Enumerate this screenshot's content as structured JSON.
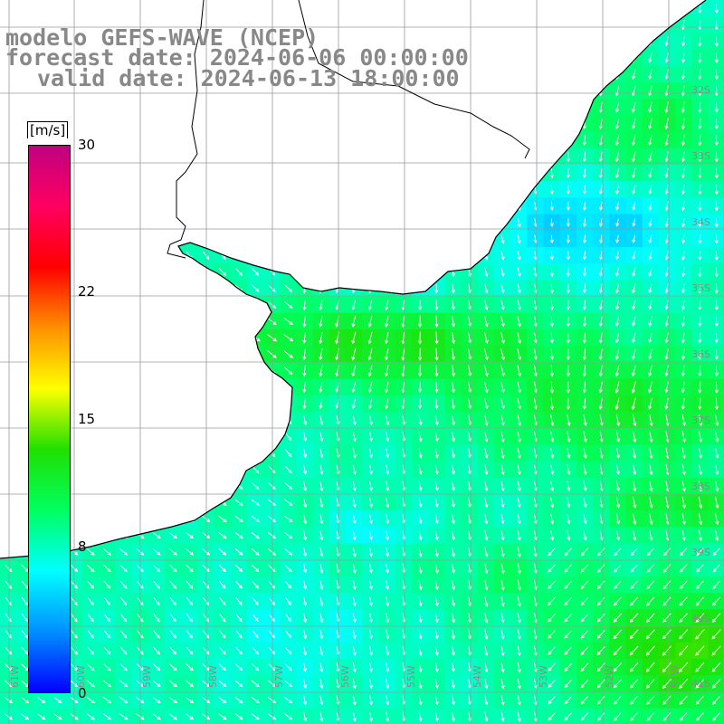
{
  "title": {
    "line1": "modelo GEFS-WAVE (NCEP)",
    "line2": "forecast date: 2024-06-06 00:00:00",
    "line3": "valid date: 2024-06-13 18:00:00"
  },
  "colorbar": {
    "unit": "[m/s]",
    "min": 0,
    "max": 30,
    "ticks": [
      "30",
      "22",
      "15",
      "8",
      "0"
    ],
    "tick_values": [
      30,
      22,
      15,
      8,
      0
    ],
    "stops": [
      "#0000ff",
      "#0090ff",
      "#00ffff",
      "#00ff60",
      "#20e000",
      "#ffff00",
      "#ff9000",
      "#ff0000",
      "#ff0060",
      "#c00080"
    ]
  },
  "lat_labels": [
    "32S",
    "33S",
    "34S",
    "35S",
    "36S",
    "37S",
    "38S",
    "39S",
    "40S",
    "41S"
  ],
  "lon_labels": [
    "61W",
    "60W",
    "59W",
    "58W",
    "57W",
    "56W",
    "55W",
    "54W",
    "53W",
    "52W",
    "51W"
  ],
  "chart_data": {
    "type": "heatmap",
    "variable": "wind speed",
    "unit": "m/s",
    "lat_range": [
      -41.3,
      -30.5
    ],
    "lon_range": [
      -61.7,
      -50.5
    ],
    "wind_field_regions": [
      {
        "area": "near coast (Rio de la Plata)",
        "speed": 9
      },
      {
        "area": "offshore 33S-35S",
        "speed": 6
      },
      {
        "area": "35S-36S band",
        "speed": 12
      },
      {
        "area": "36S-38S",
        "speed": 10
      },
      {
        "area": "38S-40S",
        "speed": 8
      },
      {
        "area": "southeast corner 40S-41S",
        "speed": 15
      }
    ]
  }
}
